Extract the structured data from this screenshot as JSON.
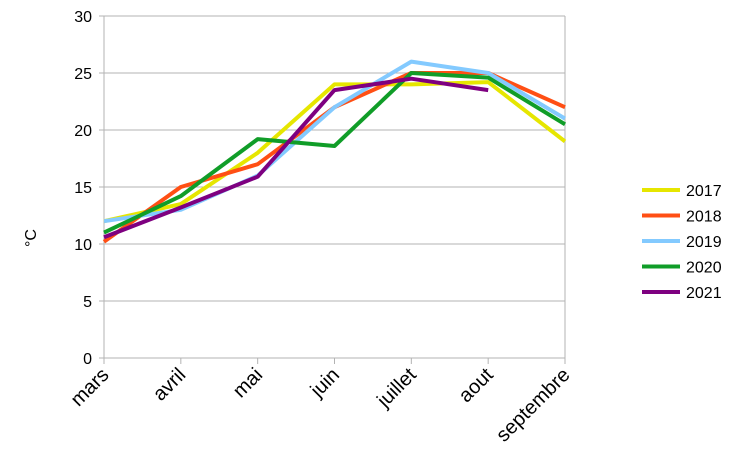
{
  "chart_data": {
    "type": "line",
    "title": "",
    "xlabel": "",
    "ylabel": "°C",
    "ylim": [
      0,
      30
    ],
    "yticks": [
      0,
      5,
      10,
      15,
      20,
      25,
      30
    ],
    "grid": true,
    "legend_position": "right",
    "categories": [
      "mars",
      "avril",
      "mai",
      "juin",
      "juillet",
      "aout",
      "septembre"
    ],
    "series": [
      {
        "name": "2017",
        "color": "#e6e600",
        "values": [
          12,
          13.5,
          18,
          24,
          24,
          24.2,
          19
        ]
      },
      {
        "name": "2018",
        "color": "#ff4f14",
        "values": [
          10.2,
          15,
          17,
          22,
          25,
          25,
          22
        ]
      },
      {
        "name": "2019",
        "color": "#83caff",
        "values": [
          12,
          13,
          16,
          22,
          26,
          25,
          21
        ]
      },
      {
        "name": "2020",
        "color": "#109d28",
        "values": [
          11,
          14.2,
          19.2,
          18.6,
          25,
          24.6,
          20.5
        ]
      },
      {
        "name": "2021",
        "color": "#7e0080",
        "values": [
          10.6,
          13.2,
          15.9,
          23.5,
          24.5,
          23.5,
          null
        ]
      }
    ]
  }
}
